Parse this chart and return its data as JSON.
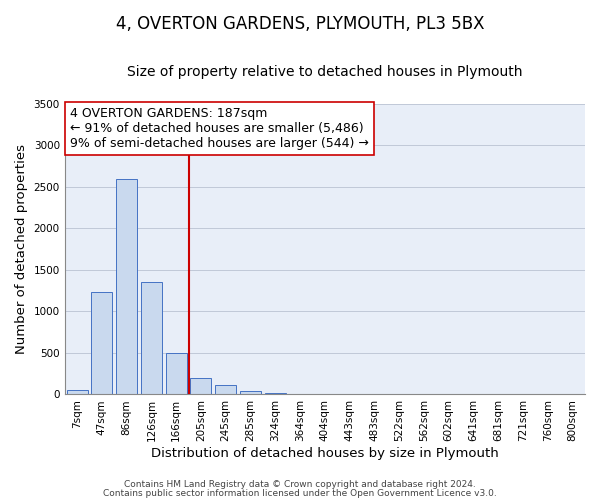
{
  "title": "4, OVERTON GARDENS, PLYMOUTH, PL3 5BX",
  "subtitle": "Size of property relative to detached houses in Plymouth",
  "xlabel": "Distribution of detached houses by size in Plymouth",
  "ylabel": "Number of detached properties",
  "bar_labels": [
    "7sqm",
    "47sqm",
    "86sqm",
    "126sqm",
    "166sqm",
    "205sqm",
    "245sqm",
    "285sqm",
    "324sqm",
    "364sqm",
    "404sqm",
    "443sqm",
    "483sqm",
    "522sqm",
    "562sqm",
    "602sqm",
    "641sqm",
    "681sqm",
    "721sqm",
    "760sqm",
    "800sqm"
  ],
  "bar_values": [
    50,
    1230,
    2590,
    1350,
    500,
    200,
    110,
    45,
    20,
    10,
    5,
    3,
    2,
    0,
    0,
    0,
    0,
    0,
    0,
    0,
    0
  ],
  "bar_color": "#c9d9ee",
  "bar_edge_color": "#4472c4",
  "vline_color": "#cc0000",
  "vline_x_index": 4.5,
  "annotation_title": "4 OVERTON GARDENS: 187sqm",
  "annotation_line1": "← 91% of detached houses are smaller (5,486)",
  "annotation_line2": "9% of semi-detached houses are larger (544) →",
  "annotation_box_color": "#ffffff",
  "annotation_box_edge": "#cc0000",
  "ylim": [
    0,
    3500
  ],
  "yticks": [
    0,
    500,
    1000,
    1500,
    2000,
    2500,
    3000,
    3500
  ],
  "footer1": "Contains HM Land Registry data © Crown copyright and database right 2024.",
  "footer2": "Contains public sector information licensed under the Open Government Licence v3.0.",
  "title_fontsize": 12,
  "subtitle_fontsize": 10,
  "axis_label_fontsize": 9.5,
  "tick_fontsize": 7.5,
  "annotation_title_fontsize": 9,
  "annotation_fontsize": 9,
  "footer_fontsize": 6.5,
  "bg_color": "#e8eef8"
}
